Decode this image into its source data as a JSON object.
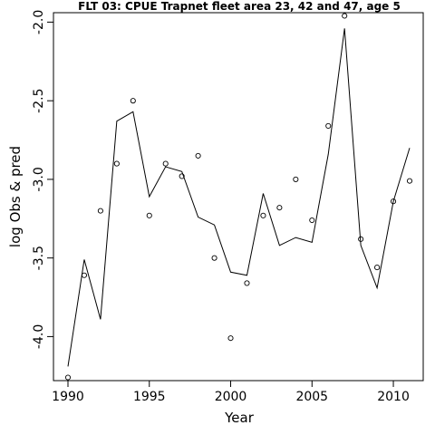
{
  "chart_data": {
    "type": "line",
    "title": "FLT 03: CPUE Trapnet fleet area 23, 42 and 47, age 5",
    "xlabel": "Year",
    "ylabel": "log Obs & pred",
    "xlim": [
      1990,
      2011
    ],
    "ylim": [
      -4.28,
      -1.94
    ],
    "x_ticks": [
      1990,
      1995,
      2000,
      2005,
      2010
    ],
    "y_ticks": [
      -4.0,
      -3.5,
      -3.0,
      -2.5,
      -2.0
    ],
    "y_tick_labels": [
      "-4.0",
      "-3.5",
      "-3.0",
      "-2.5",
      "-2.0"
    ],
    "grid": false,
    "x": [
      1990,
      1991,
      1992,
      1993,
      1994,
      1995,
      1996,
      1997,
      1998,
      1999,
      2000,
      2001,
      2002,
      2003,
      2004,
      2005,
      2006,
      2007,
      2008,
      2009,
      2010,
      2011
    ],
    "series": [
      {
        "kind": "points",
        "values": [
          -4.26,
          -3.61,
          -3.2,
          -2.9,
          -2.5,
          -3.23,
          -2.9,
          -2.98,
          -2.85,
          -3.5,
          -4.01,
          -3.66,
          -3.23,
          -3.18,
          -3.0,
          -3.26,
          -2.66,
          -1.96,
          -3.38,
          -3.56,
          -3.14,
          -3.01
        ]
      },
      {
        "kind": "line",
        "values": [
          -4.19,
          -3.51,
          -3.89,
          -2.63,
          -2.57,
          -3.11,
          -2.92,
          -2.95,
          -3.24,
          -3.29,
          -3.59,
          -3.61,
          -3.09,
          -3.42,
          -3.37,
          -3.4,
          -2.84,
          -2.04,
          -3.42,
          -3.69,
          -3.14,
          -2.8
        ]
      }
    ]
  }
}
